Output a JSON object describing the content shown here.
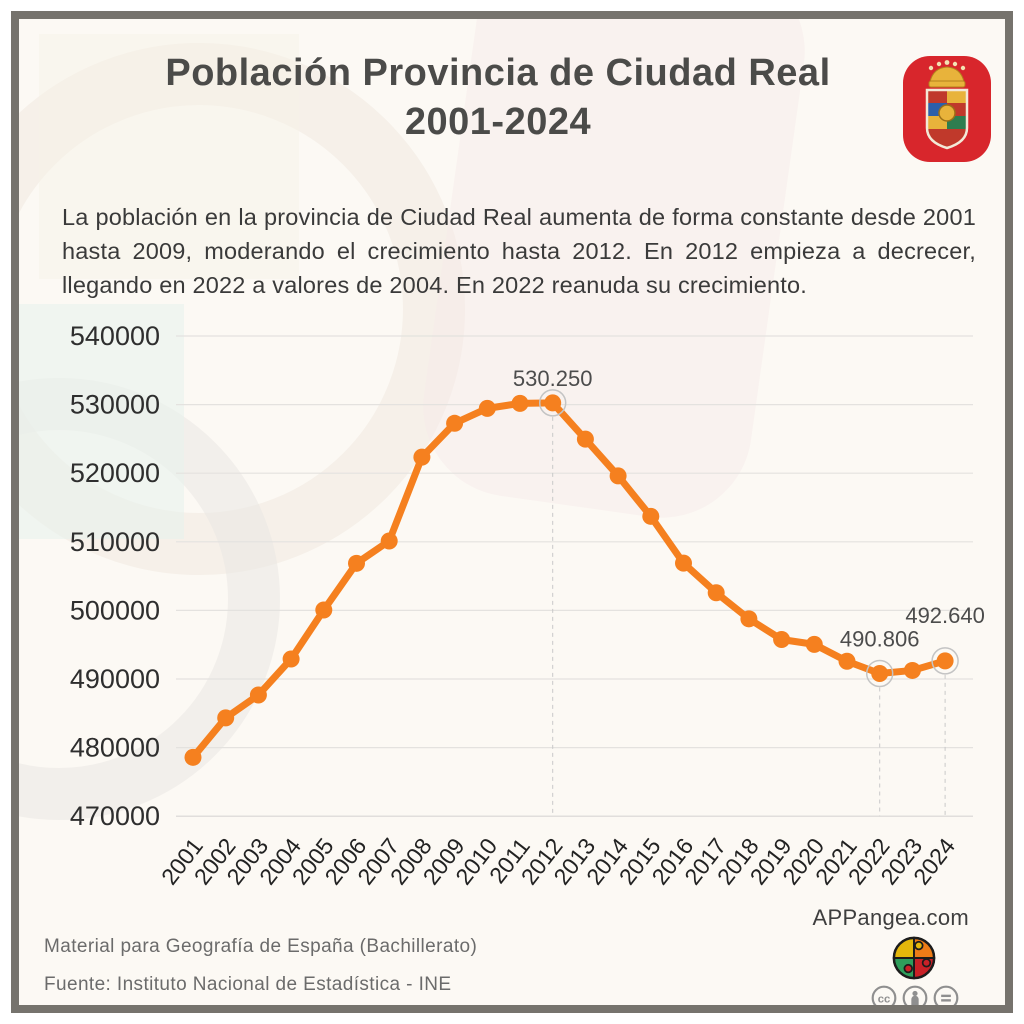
{
  "header": {
    "title_line1": "Población Provincia de Ciudad Real",
    "title_line2": "2001-2024",
    "coat_of_arms_icon": "escudo-provincia-ciudad-real"
  },
  "description": "La población en la provincia de Ciudad Real aumenta de forma constante desde 2001 hasta 2009, moderando el crecimiento hasta 2012. En 2012 empieza a decrecer, llegando en 2022 a valores de 2004. En 2022 reanuda su crecimiento.",
  "chart_data": {
    "type": "line",
    "title": "",
    "x": [
      2001,
      2002,
      2003,
      2004,
      2005,
      2006,
      2007,
      2008,
      2009,
      2010,
      2011,
      2012,
      2013,
      2014,
      2015,
      2016,
      2017,
      2018,
      2019,
      2020,
      2021,
      2022,
      2023,
      2024
    ],
    "series": [
      {
        "name": "Población provincia de Ciudad Real",
        "values": [
          478581,
          484338,
          487670,
          492914,
          500060,
          506864,
          510122,
          522343,
          527273,
          529453,
          530175,
          530250,
          524962,
          519613,
          513713,
          506888,
          502578,
          498773,
          495761,
          495045,
          492591,
          490806,
          491248,
          492640
        ]
      }
    ],
    "ylim": [
      470000,
      540000
    ],
    "ytick_step": 10000,
    "yticks": [
      "470000",
      "480000",
      "490000",
      "500000",
      "510000",
      "520000",
      "530000",
      "540000"
    ],
    "grid": true,
    "legend": "none",
    "line_color": "#F5801F",
    "annotations": [
      {
        "x": 2012,
        "label": "530.250",
        "dy": -17
      },
      {
        "x": 2022,
        "label": "490.806",
        "dy": -27
      },
      {
        "x": 2024,
        "label": "492.640",
        "dy": -38
      }
    ]
  },
  "footer": {
    "material": "Material para Geografía de España (Bachillerato)",
    "source": "Fuente: Instituto Nacional de Estadística - INE",
    "brand": "APPangea.com",
    "license_icons": [
      "cc-icon",
      "cc-by-icon",
      "cc-nd-icon"
    ],
    "logo_icon": "appangea-puzzle-logo"
  },
  "colors": {
    "accent_orange": "#F5801F",
    "frame_gray": "#76736D",
    "escudo_red": "#D8262C",
    "grid_gray": "#E4E2DF"
  }
}
